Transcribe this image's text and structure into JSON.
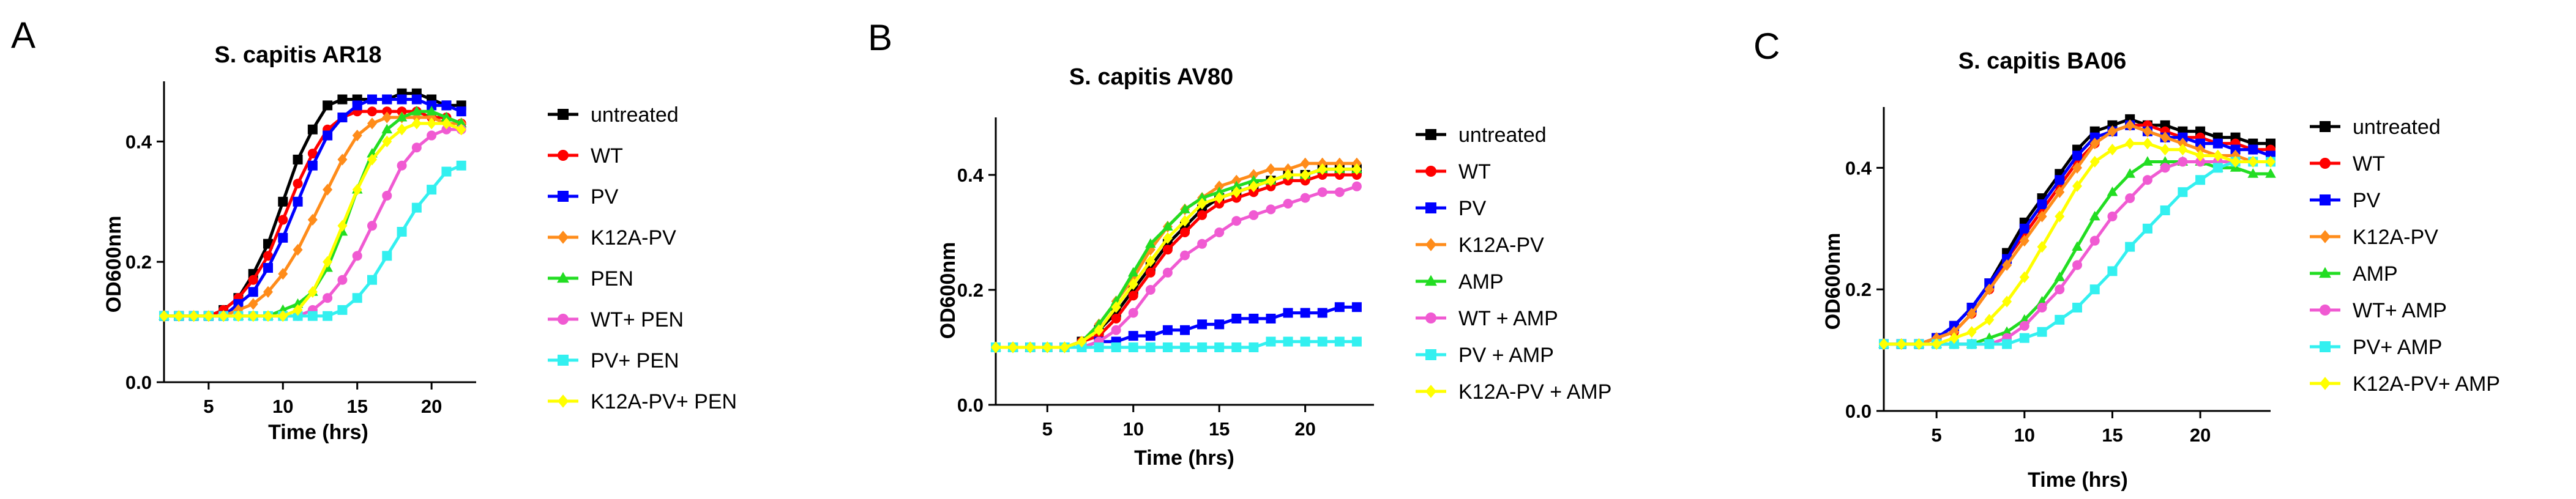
{
  "chart_data": [
    {
      "type": "line",
      "panel": "A",
      "title": "S. capitis AR18",
      "xlabel": "Time (hrs)",
      "ylabel": "OD600nm",
      "xlim": [
        2,
        23
      ],
      "ylim": [
        0,
        0.5
      ],
      "xticks": [
        5,
        10,
        15,
        20
      ],
      "yticks": [
        0.0,
        0.2,
        0.4
      ],
      "legend_position": "right",
      "x": [
        2,
        3,
        4,
        5,
        6,
        7,
        8,
        9,
        10,
        11,
        12,
        13,
        14,
        15,
        16,
        17,
        18,
        19,
        20,
        21,
        22
      ],
      "series": [
        {
          "name": "untreated",
          "color": "#000000",
          "marker": "square",
          "values": [
            0.11,
            0.11,
            0.11,
            0.11,
            0.12,
            0.14,
            0.18,
            0.23,
            0.3,
            0.37,
            0.42,
            0.46,
            0.47,
            0.47,
            0.47,
            0.47,
            0.48,
            0.48,
            0.47,
            0.46,
            0.46
          ]
        },
        {
          "name": "WT",
          "color": "#ff0000",
          "marker": "circle",
          "values": [
            0.11,
            0.11,
            0.11,
            0.11,
            0.12,
            0.14,
            0.17,
            0.21,
            0.27,
            0.33,
            0.38,
            0.42,
            0.44,
            0.45,
            0.45,
            0.45,
            0.45,
            0.45,
            0.44,
            0.44,
            0.43
          ]
        },
        {
          "name": "PV",
          "color": "#0000ff",
          "marker": "square",
          "values": [
            0.11,
            0.11,
            0.11,
            0.11,
            0.11,
            0.13,
            0.15,
            0.19,
            0.24,
            0.3,
            0.36,
            0.41,
            0.44,
            0.46,
            0.47,
            0.47,
            0.47,
            0.47,
            0.46,
            0.46,
            0.45
          ]
        },
        {
          "name": "K12A-PV",
          "color": "#ff8c1a",
          "marker": "diamond",
          "values": [
            0.11,
            0.11,
            0.11,
            0.11,
            0.11,
            0.12,
            0.13,
            0.15,
            0.18,
            0.22,
            0.27,
            0.32,
            0.37,
            0.41,
            0.43,
            0.44,
            0.44,
            0.44,
            0.44,
            0.43,
            0.43
          ]
        },
        {
          "name": "PEN",
          "color": "#22dd22",
          "marker": "triangle",
          "values": [
            0.11,
            0.11,
            0.11,
            0.11,
            0.11,
            0.11,
            0.11,
            0.11,
            0.12,
            0.13,
            0.15,
            0.19,
            0.25,
            0.32,
            0.38,
            0.42,
            0.44,
            0.45,
            0.45,
            0.44,
            0.43
          ]
        },
        {
          "name": "WT+ PEN",
          "color": "#f05ad2",
          "marker": "circle",
          "values": [
            0.11,
            0.11,
            0.11,
            0.11,
            0.11,
            0.11,
            0.11,
            0.11,
            0.11,
            0.11,
            0.12,
            0.14,
            0.17,
            0.21,
            0.26,
            0.31,
            0.36,
            0.39,
            0.41,
            0.42,
            0.42
          ]
        },
        {
          "name": "PV+ PEN",
          "color": "#33f0f0",
          "marker": "square",
          "values": [
            0.11,
            0.11,
            0.11,
            0.11,
            0.11,
            0.11,
            0.11,
            0.11,
            0.11,
            0.11,
            0.11,
            0.11,
            0.12,
            0.14,
            0.17,
            0.21,
            0.25,
            0.29,
            0.32,
            0.35,
            0.36
          ]
        },
        {
          "name": "K12A-PV+ PEN",
          "color": "#ffff00",
          "marker": "diamond",
          "values": [
            0.11,
            0.11,
            0.11,
            0.11,
            0.11,
            0.11,
            0.11,
            0.11,
            0.11,
            0.12,
            0.15,
            0.2,
            0.26,
            0.32,
            0.37,
            0.4,
            0.42,
            0.43,
            0.43,
            0.43,
            0.42
          ]
        }
      ]
    },
    {
      "type": "line",
      "panel": "B",
      "title": "S. capitis AV80",
      "xlabel": "Time (hrs)",
      "ylabel": "OD600nm",
      "xlim": [
        2,
        24
      ],
      "ylim": [
        0,
        0.5
      ],
      "xticks": [
        5,
        10,
        15,
        20
      ],
      "yticks": [
        0.0,
        0.2,
        0.4
      ],
      "legend_position": "right",
      "x": [
        2,
        3,
        4,
        5,
        6,
        7,
        8,
        9,
        10,
        11,
        12,
        13,
        14,
        15,
        16,
        17,
        18,
        19,
        20,
        21,
        22,
        23
      ],
      "series": [
        {
          "name": "untreated",
          "color": "#000000",
          "marker": "square",
          "values": [
            0.1,
            0.1,
            0.1,
            0.1,
            0.1,
            0.11,
            0.13,
            0.16,
            0.2,
            0.24,
            0.28,
            0.31,
            0.34,
            0.36,
            0.37,
            0.38,
            0.39,
            0.4,
            0.4,
            0.41,
            0.41,
            0.41
          ]
        },
        {
          "name": "WT",
          "color": "#ff0000",
          "marker": "circle",
          "values": [
            0.1,
            0.1,
            0.1,
            0.1,
            0.1,
            0.11,
            0.12,
            0.15,
            0.19,
            0.23,
            0.27,
            0.3,
            0.33,
            0.35,
            0.36,
            0.37,
            0.38,
            0.39,
            0.39,
            0.4,
            0.4,
            0.4
          ]
        },
        {
          "name": "PV",
          "color": "#0000ff",
          "marker": "square",
          "values": [
            0.1,
            0.1,
            0.1,
            0.1,
            0.1,
            0.1,
            0.11,
            0.11,
            0.12,
            0.12,
            0.13,
            0.13,
            0.14,
            0.14,
            0.15,
            0.15,
            0.15,
            0.16,
            0.16,
            0.16,
            0.17,
            0.17
          ]
        },
        {
          "name": "K12A-PV",
          "color": "#ff8c1a",
          "marker": "diamond",
          "values": [
            0.1,
            0.1,
            0.1,
            0.1,
            0.1,
            0.11,
            0.14,
            0.18,
            0.22,
            0.27,
            0.31,
            0.34,
            0.36,
            0.38,
            0.39,
            0.4,
            0.41,
            0.41,
            0.42,
            0.42,
            0.42,
            0.42
          ]
        },
        {
          "name": "AMP",
          "color": "#22dd22",
          "marker": "triangle",
          "values": [
            0.1,
            0.1,
            0.1,
            0.1,
            0.1,
            0.11,
            0.14,
            0.18,
            0.23,
            0.28,
            0.31,
            0.34,
            0.36,
            0.37,
            0.38,
            0.39,
            0.39,
            0.4,
            0.4,
            0.41,
            0.41,
            0.41
          ]
        },
        {
          "name": "WT + AMP",
          "color": "#f05ad2",
          "marker": "circle",
          "values": [
            0.1,
            0.1,
            0.1,
            0.1,
            0.1,
            0.1,
            0.11,
            0.13,
            0.16,
            0.2,
            0.23,
            0.26,
            0.28,
            0.3,
            0.32,
            0.33,
            0.34,
            0.35,
            0.36,
            0.37,
            0.37,
            0.38
          ]
        },
        {
          "name": "PV + AMP",
          "color": "#33f0f0",
          "marker": "square",
          "values": [
            0.1,
            0.1,
            0.1,
            0.1,
            0.1,
            0.1,
            0.1,
            0.1,
            0.1,
            0.1,
            0.1,
            0.1,
            0.1,
            0.1,
            0.1,
            0.1,
            0.11,
            0.11,
            0.11,
            0.11,
            0.11,
            0.11
          ]
        },
        {
          "name": "K12A-PV + AMP",
          "color": "#ffff00",
          "marker": "diamond",
          "values": [
            0.1,
            0.1,
            0.1,
            0.1,
            0.1,
            0.11,
            0.13,
            0.17,
            0.21,
            0.25,
            0.29,
            0.32,
            0.35,
            0.36,
            0.37,
            0.38,
            0.39,
            0.4,
            0.4,
            0.41,
            0.41,
            0.41
          ]
        }
      ]
    },
    {
      "type": "line",
      "panel": "C",
      "title": "S. capitis BA06",
      "xlabel": "Time (hrs)",
      "ylabel": "OD600nm",
      "xlim": [
        2,
        24
      ],
      "ylim": [
        0,
        0.5
      ],
      "xticks": [
        5,
        10,
        15,
        20
      ],
      "yticks": [
        0.0,
        0.2,
        0.4
      ],
      "legend_position": "right",
      "x": [
        2,
        3,
        4,
        5,
        6,
        7,
        8,
        9,
        10,
        11,
        12,
        13,
        14,
        15,
        16,
        17,
        18,
        19,
        20,
        21,
        22,
        23,
        24
      ],
      "series": [
        {
          "name": "untreated",
          "color": "#000000",
          "marker": "square",
          "values": [
            0.11,
            0.11,
            0.11,
            0.12,
            0.14,
            0.17,
            0.21,
            0.26,
            0.31,
            0.35,
            0.39,
            0.43,
            0.46,
            0.47,
            0.48,
            0.47,
            0.47,
            0.46,
            0.46,
            0.45,
            0.45,
            0.44,
            0.44
          ]
        },
        {
          "name": "WT",
          "color": "#ff0000",
          "marker": "circle",
          "values": [
            0.11,
            0.11,
            0.11,
            0.12,
            0.13,
            0.16,
            0.2,
            0.25,
            0.29,
            0.33,
            0.37,
            0.41,
            0.44,
            0.46,
            0.47,
            0.47,
            0.46,
            0.45,
            0.45,
            0.44,
            0.44,
            0.43,
            0.43
          ]
        },
        {
          "name": "PV",
          "color": "#0000ff",
          "marker": "square",
          "values": [
            0.11,
            0.11,
            0.11,
            0.12,
            0.14,
            0.17,
            0.21,
            0.25,
            0.3,
            0.34,
            0.38,
            0.42,
            0.45,
            0.46,
            0.47,
            0.46,
            0.45,
            0.45,
            0.44,
            0.44,
            0.43,
            0.43,
            0.42
          ]
        },
        {
          "name": "K12A-PV",
          "color": "#ff8c1a",
          "marker": "diamond",
          "values": [
            0.11,
            0.11,
            0.11,
            0.12,
            0.13,
            0.16,
            0.2,
            0.24,
            0.28,
            0.32,
            0.36,
            0.4,
            0.44,
            0.46,
            0.47,
            0.46,
            0.45,
            0.44,
            0.43,
            0.42,
            0.42,
            0.41,
            0.41
          ]
        },
        {
          "name": "AMP",
          "color": "#22dd22",
          "marker": "triangle",
          "values": [
            0.11,
            0.11,
            0.11,
            0.11,
            0.11,
            0.11,
            0.12,
            0.13,
            0.15,
            0.18,
            0.22,
            0.27,
            0.32,
            0.36,
            0.39,
            0.41,
            0.41,
            0.41,
            0.41,
            0.4,
            0.4,
            0.39,
            0.39
          ]
        },
        {
          "name": "WT+ AMP",
          "color": "#f05ad2",
          "marker": "circle",
          "values": [
            0.11,
            0.11,
            0.11,
            0.11,
            0.11,
            0.11,
            0.11,
            0.12,
            0.14,
            0.17,
            0.2,
            0.24,
            0.28,
            0.32,
            0.35,
            0.38,
            0.4,
            0.41,
            0.41,
            0.41,
            0.41,
            0.41,
            0.41
          ]
        },
        {
          "name": "PV+ AMP",
          "color": "#33f0f0",
          "marker": "square",
          "values": [
            0.11,
            0.11,
            0.11,
            0.11,
            0.11,
            0.11,
            0.11,
            0.11,
            0.12,
            0.13,
            0.15,
            0.17,
            0.2,
            0.23,
            0.27,
            0.3,
            0.33,
            0.36,
            0.38,
            0.4,
            0.41,
            0.41,
            0.41
          ]
        },
        {
          "name": "K12A-PV+ AMP",
          "color": "#ffff00",
          "marker": "diamond",
          "values": [
            0.11,
            0.11,
            0.11,
            0.11,
            0.12,
            0.13,
            0.15,
            0.18,
            0.22,
            0.27,
            0.32,
            0.37,
            0.41,
            0.43,
            0.44,
            0.44,
            0.43,
            0.43,
            0.42,
            0.42,
            0.41,
            0.41,
            0.41
          ]
        }
      ]
    }
  ]
}
